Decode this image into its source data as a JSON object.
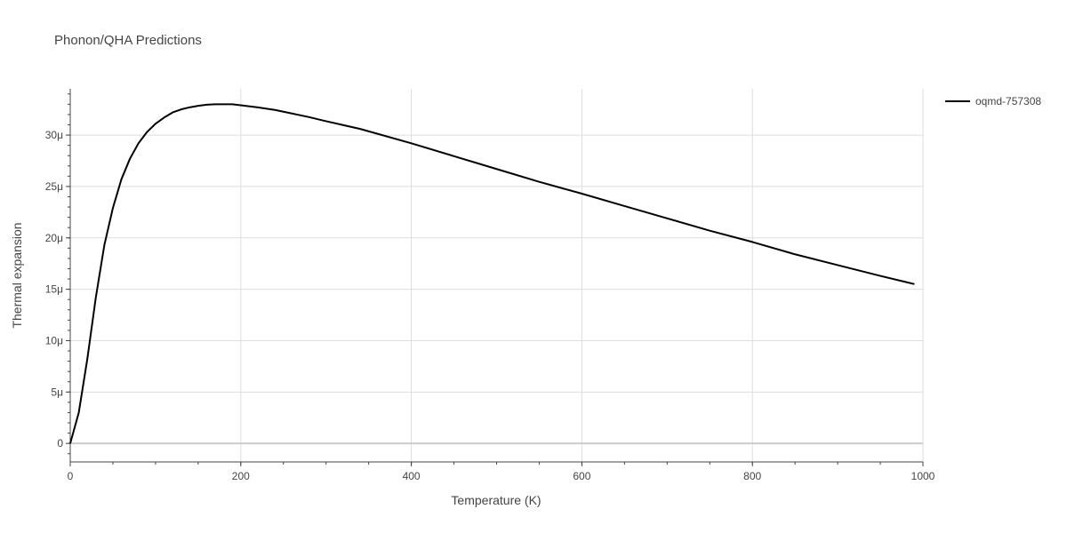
{
  "chart_data": {
    "type": "line",
    "title": "Phonon/QHA Predictions",
    "xlabel": "Temperature (K)",
    "ylabel": "Thermal expansion",
    "xlim": [
      0,
      1000
    ],
    "ylim": [
      -1.8e-06,
      3.45e-05
    ],
    "x_ticks": [
      0,
      200,
      400,
      600,
      800,
      1000
    ],
    "x_tick_labels": [
      "0",
      "200",
      "400",
      "600",
      "800",
      "1000"
    ],
    "y_ticks": [
      0,
      5e-06,
      1e-05,
      1.5e-05,
      2e-05,
      2.5e-05,
      3e-05
    ],
    "y_tick_labels": [
      "0",
      "5μ",
      "10μ",
      "15μ",
      "20μ",
      "25μ",
      "30μ"
    ],
    "grid": true,
    "legend_position": "top-right",
    "series": [
      {
        "name": "oqmd-757308",
        "color": "#000000",
        "x": [
          0,
          10,
          20,
          30,
          40,
          50,
          60,
          70,
          80,
          90,
          100,
          110,
          120,
          130,
          140,
          150,
          160,
          170,
          180,
          190,
          200,
          220,
          240,
          260,
          280,
          300,
          340,
          400,
          450,
          500,
          550,
          600,
          650,
          700,
          750,
          800,
          850,
          900,
          950,
          990
        ],
        "y": [
          0.0,
          3e-06,
          8.2e-06,
          1.42e-05,
          1.93e-05,
          2.29e-05,
          2.57e-05,
          2.77e-05,
          2.92e-05,
          3.03e-05,
          3.11e-05,
          3.17e-05,
          3.22e-05,
          3.25e-05,
          3.27e-05,
          3.285e-05,
          3.295e-05,
          3.3e-05,
          3.3e-05,
          3.3e-05,
          3.29e-05,
          3.27e-05,
          3.245e-05,
          3.21e-05,
          3.175e-05,
          3.135e-05,
          3.06e-05,
          2.92e-05,
          2.795e-05,
          2.67e-05,
          2.545e-05,
          2.43e-05,
          2.31e-05,
          2.19e-05,
          2.07e-05,
          1.96e-05,
          1.84e-05,
          1.735e-05,
          1.63e-05,
          1.55e-05
        ]
      }
    ]
  }
}
